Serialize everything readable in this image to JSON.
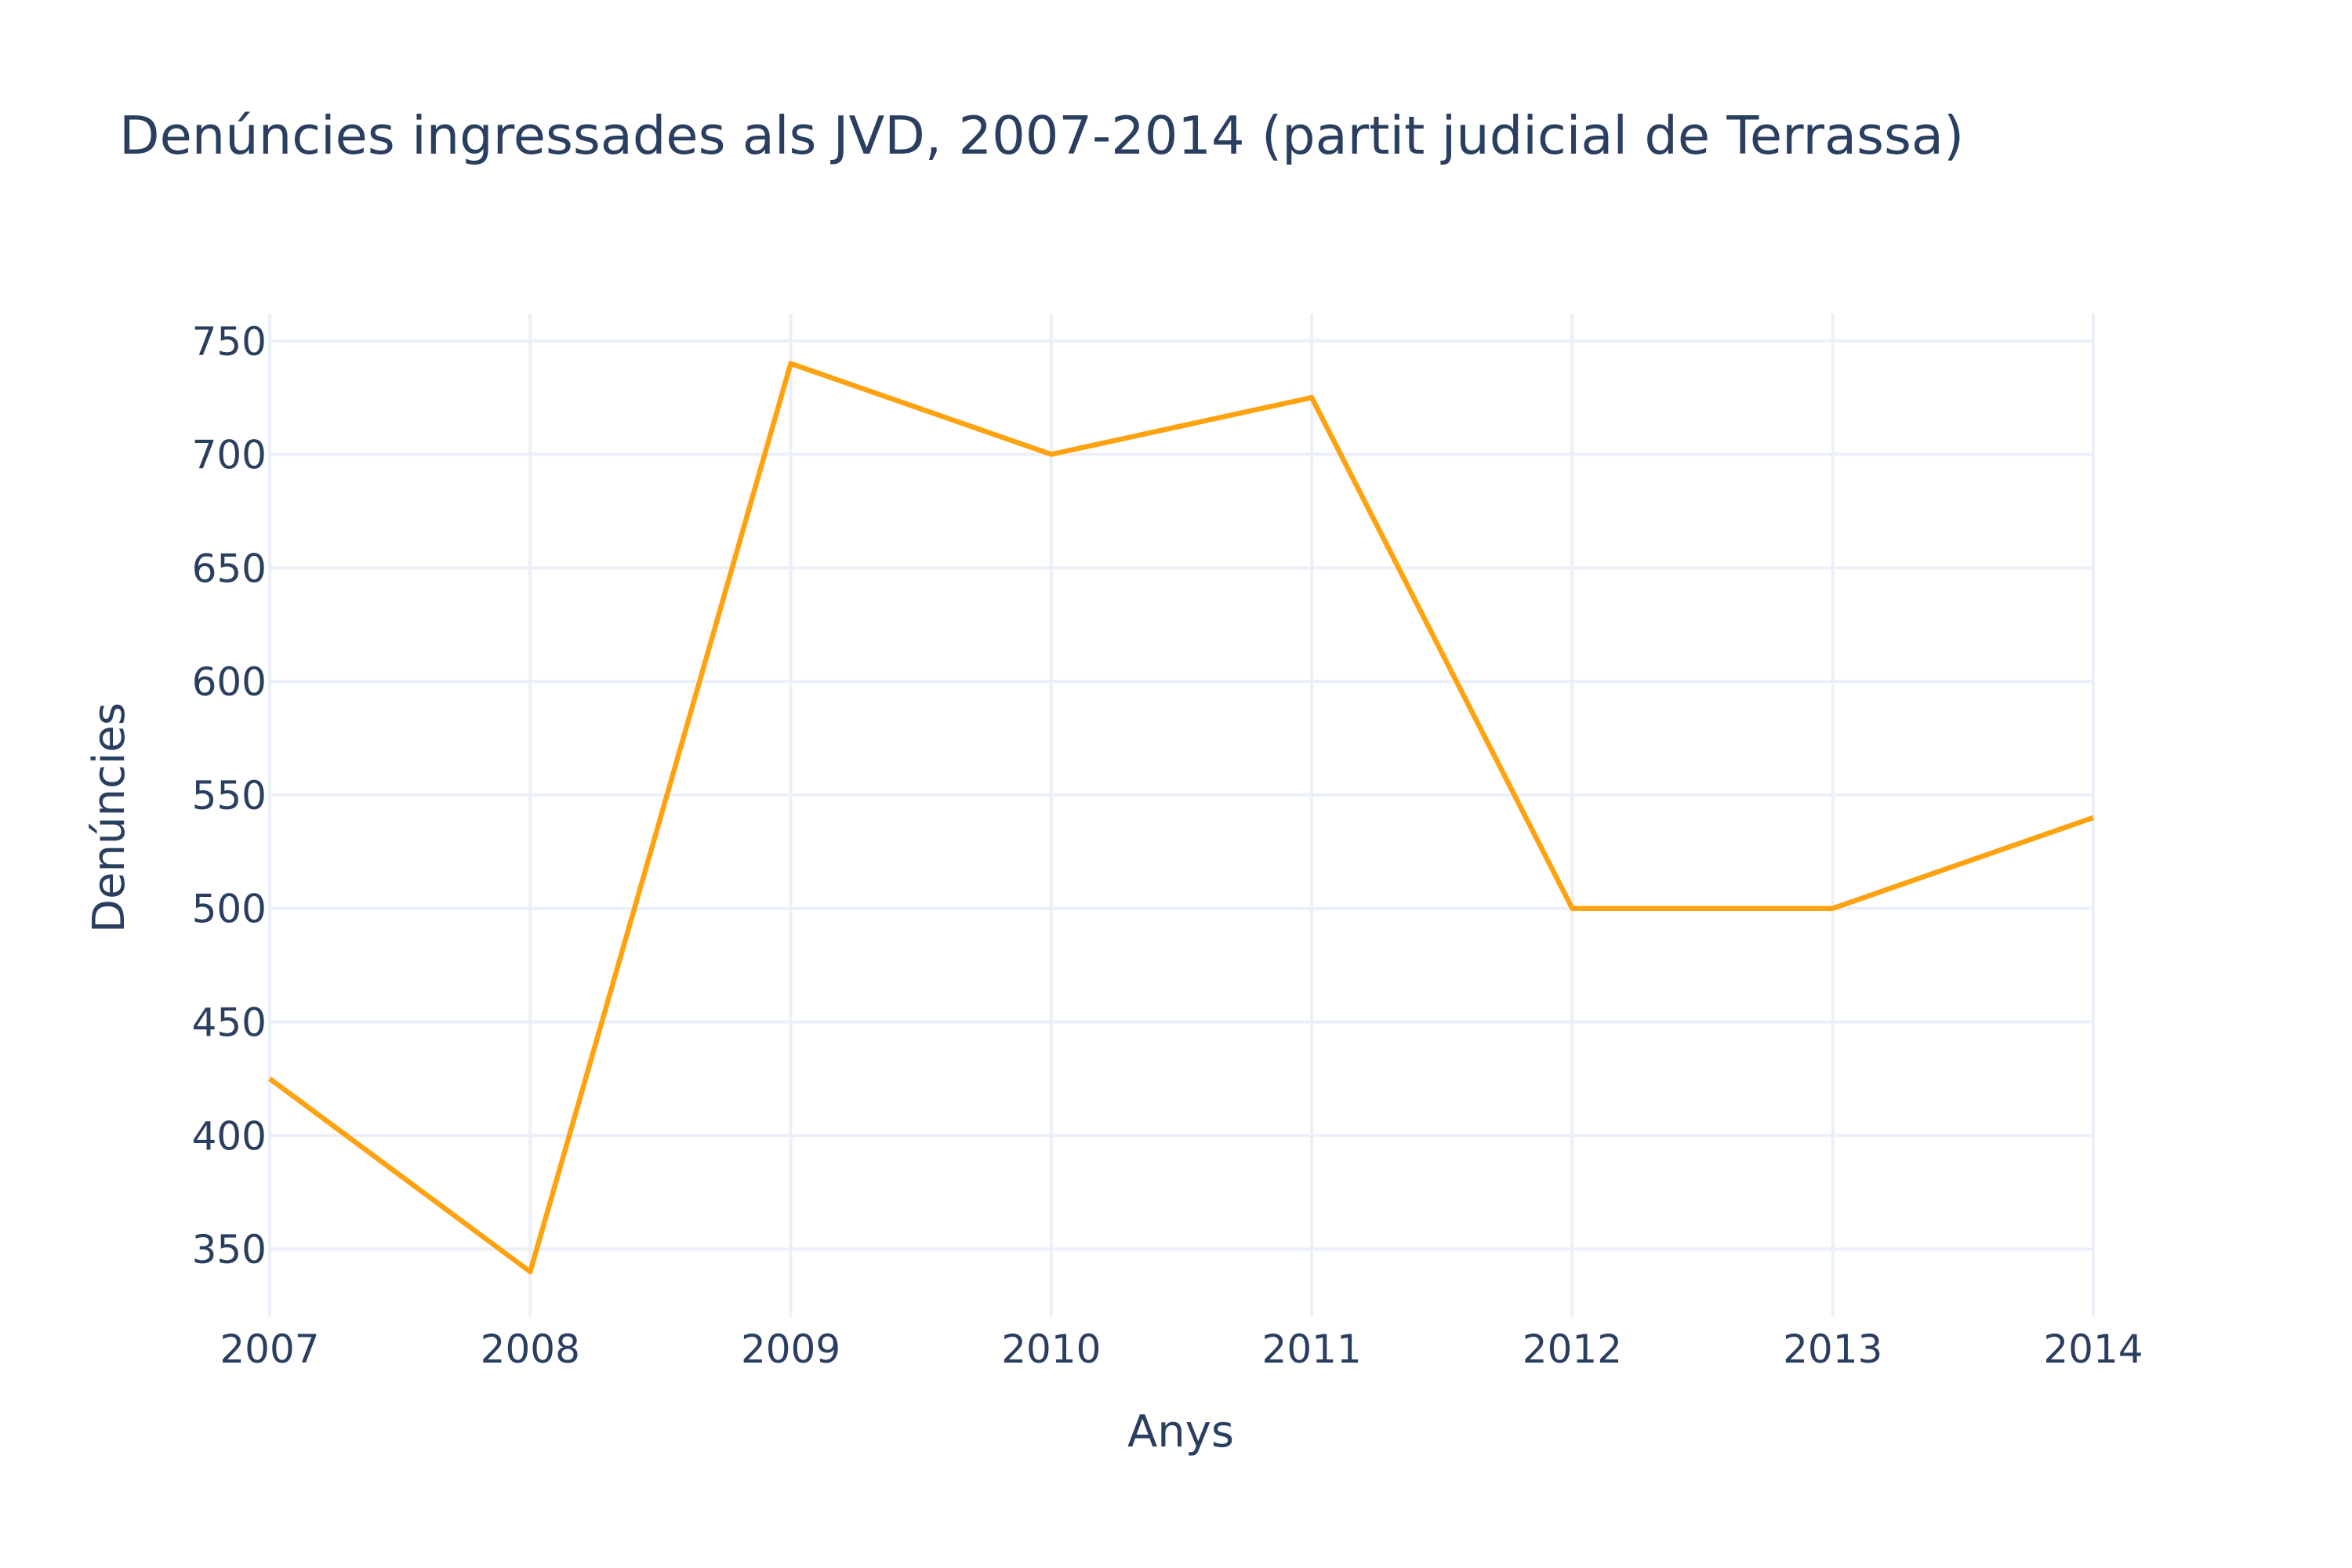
{
  "chart_data": {
    "type": "line",
    "title": "Denúncies ingressades als JVD, 2007-2014 (partit judicial de Terrassa)",
    "xlabel": "Anys",
    "ylabel": "Denúncies",
    "x": [
      2007,
      2008,
      2009,
      2010,
      2011,
      2012,
      2013,
      2014
    ],
    "series": [
      {
        "color": "#ffa20f",
        "values": [
          425,
          340,
          740,
          700,
          725,
          500,
          500,
          540
        ]
      }
    ],
    "xlim": [
      2007,
      2014
    ],
    "ylim": [
      320,
      762
    ],
    "x_ticks": [
      "2007",
      "2008",
      "2009",
      "2010",
      "2011",
      "2012",
      "2013",
      "2014"
    ],
    "y_ticks": [
      "350",
      "400",
      "450",
      "500",
      "550",
      "600",
      "650",
      "700",
      "750"
    ],
    "y_tick_values": [
      350,
      400,
      450,
      500,
      550,
      600,
      650,
      700,
      750
    ],
    "grid": true,
    "legend": "none"
  }
}
